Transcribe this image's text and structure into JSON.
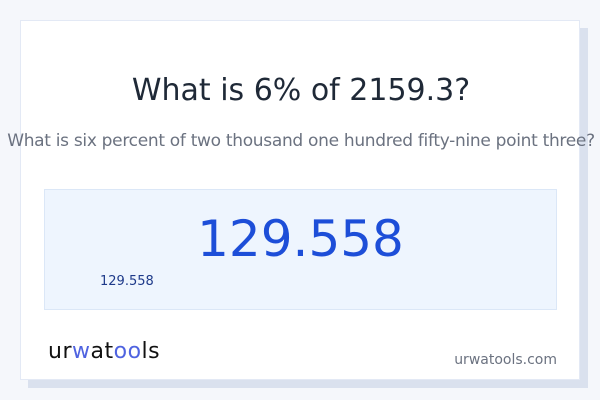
{
  "title": "What is 6% of 2159.3?",
  "subtitle": "What is six percent of two thousand one hundred fifty-nine point three?",
  "result": {
    "value": "129.558",
    "small_value": "129.558"
  },
  "logo": {
    "text": "urwatools"
  },
  "footer": {
    "domain": "urwatools.com"
  },
  "colors": {
    "accent": "#1d4ed8",
    "result_bg": "#eef5fe",
    "page_bg": "#f5f7fb"
  }
}
